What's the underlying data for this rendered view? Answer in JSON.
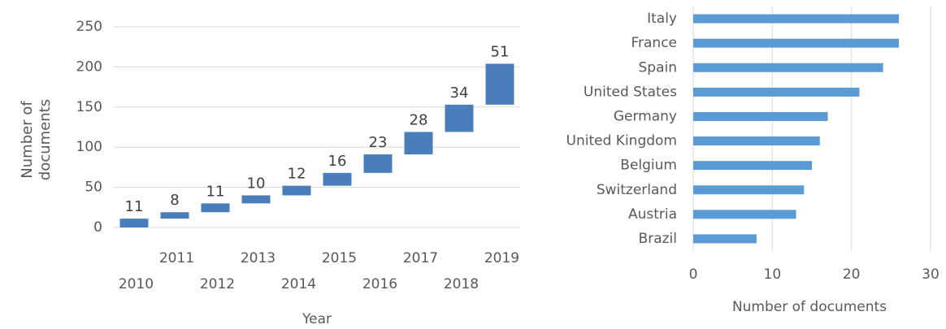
{
  "chart_data": [
    {
      "type": "waterfall",
      "x_label": "Year",
      "y_label": "Number of documents",
      "categories": [
        "2010",
        "2011",
        "2012",
        "2013",
        "2014",
        "2015",
        "2016",
        "2017",
        "2018",
        "2019"
      ],
      "values": [
        11,
        8,
        11,
        10,
        12,
        16,
        23,
        28,
        34,
        51
      ],
      "color": "#4a7ebb",
      "ylim": [
        0,
        250
      ],
      "yticks": [
        0,
        50,
        100,
        150,
        200,
        250
      ],
      "grid": true
    },
    {
      "type": "hbar",
      "x_label": "Number of documents",
      "categories": [
        "Italy",
        "France",
        "Spain",
        "United States",
        "Germany",
        "United Kingdom",
        "Belgium",
        "Switzerland",
        "Austria",
        "Brazil"
      ],
      "values": [
        26,
        26,
        24,
        21,
        17,
        16,
        15,
        14,
        13,
        8
      ],
      "color": "#5b9bd5",
      "xlim": [
        0,
        30
      ],
      "xticks": [
        0,
        10,
        20,
        30
      ],
      "grid": true
    }
  ]
}
